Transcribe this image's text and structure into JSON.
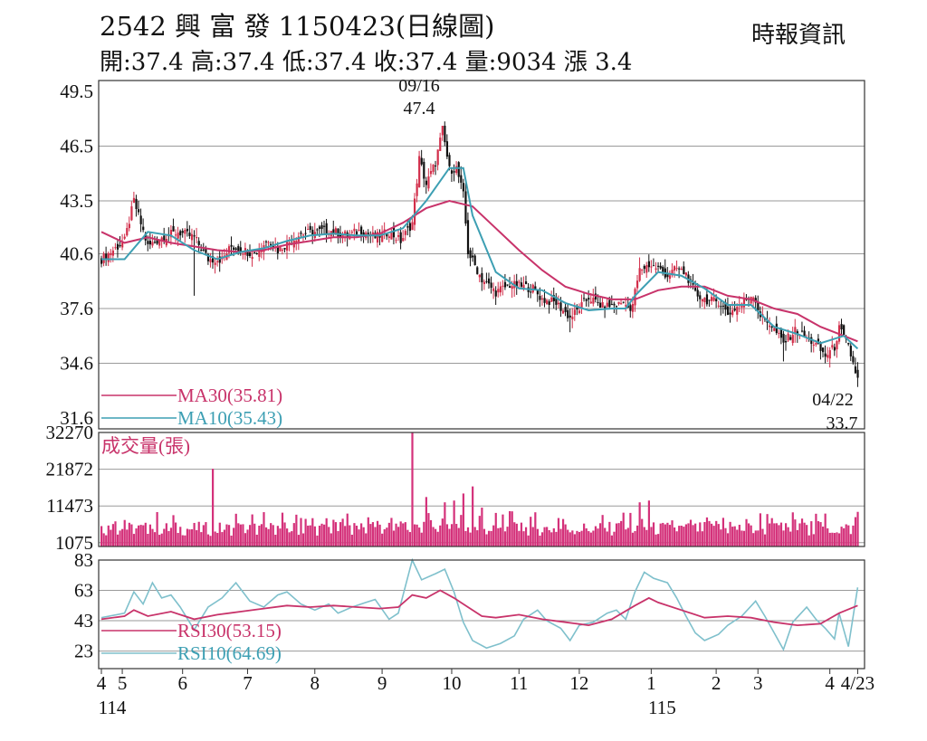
{
  "header": {
    "title": "2542 興 富 發 1150423(日線圖)",
    "source": "時報資訊",
    "quote": "開:37.4 高:37.4 低:37.4 收:37.4 量:9034 漲 3.4"
  },
  "colors": {
    "up": "#d22e4a",
    "down": "#111111",
    "ma30": "#c8336a",
    "ma10": "#3d9fb3",
    "volume": "#d4317a",
    "rsi30": "#c8336a",
    "rsi10": "#7fc0cc",
    "grid": "#9a9a9a"
  },
  "chart_data": [
    {
      "type": "candlestick",
      "title": "2542 興 富 發 1150423(日線圖)",
      "ylim": [
        31.6,
        49.5
      ],
      "yticks": [
        "49.5",
        "46.5",
        "43.5",
        "40.6",
        "37.6",
        "34.6",
        "31.6"
      ],
      "annotations": [
        {
          "date": "09/16",
          "value": "47.4"
        },
        {
          "date": "04/22",
          "value": "33.7"
        }
      ],
      "ma_legend": [
        {
          "name": "MA30",
          "label": "MA30(35.81)"
        },
        {
          "name": "MA10",
          "label": "MA10(35.43)"
        }
      ],
      "close_path": [
        [
          0,
          40.3
        ],
        [
          10,
          41.3
        ],
        [
          14,
          43.5
        ],
        [
          20,
          41.0
        ],
        [
          26,
          41.5
        ],
        [
          33,
          41.8
        ],
        [
          40,
          41.5
        ],
        [
          46,
          40.3
        ],
        [
          52,
          40.3
        ],
        [
          56,
          41.0
        ],
        [
          66,
          40.6
        ],
        [
          72,
          41.4
        ],
        [
          76,
          40.8
        ],
        [
          86,
          41.7
        ],
        [
          93,
          41.8
        ],
        [
          98,
          41.9
        ],
        [
          106,
          41.6
        ],
        [
          112,
          41.9
        ],
        [
          118,
          41.5
        ],
        [
          124,
          41.8
        ],
        [
          129,
          41.3
        ],
        [
          134,
          42.3
        ],
        [
          137,
          45.8
        ],
        [
          140,
          44.4
        ],
        [
          144,
          45.6
        ],
        [
          147,
          47.4
        ],
        [
          150,
          45.2
        ],
        [
          153,
          45.3
        ],
        [
          156,
          43.8
        ],
        [
          158,
          40.7
        ],
        [
          164,
          39.2
        ],
        [
          170,
          38.5
        ],
        [
          176,
          38.9
        ],
        [
          182,
          38.8
        ],
        [
          186,
          38.7
        ],
        [
          190,
          38.1
        ],
        [
          196,
          37.9
        ],
        [
          202,
          37.1
        ],
        [
          206,
          37.6
        ],
        [
          210,
          38.2
        ],
        [
          216,
          37.7
        ],
        [
          222,
          37.8
        ],
        [
          226,
          38.0
        ],
        [
          228,
          37.3
        ],
        [
          232,
          39.7
        ],
        [
          236,
          40.0
        ],
        [
          240,
          39.8
        ],
        [
          244,
          39.4
        ],
        [
          248,
          39.8
        ],
        [
          252,
          39.5
        ],
        [
          256,
          38.4
        ],
        [
          262,
          38.0
        ],
        [
          266,
          38.0
        ],
        [
          270,
          37.3
        ],
        [
          276,
          37.9
        ],
        [
          281,
          38.4
        ],
        [
          284,
          37.2
        ],
        [
          288,
          36.8
        ],
        [
          294,
          35.7
        ],
        [
          299,
          36.4
        ],
        [
          304,
          36.0
        ],
        [
          308,
          35.6
        ],
        [
          312,
          35.0
        ],
        [
          316,
          35.5
        ],
        [
          318,
          36.5
        ],
        [
          322,
          35.5
        ],
        [
          326,
          33.7
        ]
      ],
      "price_highs": [
        [
          14,
          44.0
        ],
        [
          147,
          47.4
        ],
        [
          232,
          40.4
        ],
        [
          318,
          36.9
        ]
      ],
      "price_lows": [
        [
          40,
          38.3
        ],
        [
          106,
          41.0
        ],
        [
          202,
          36.3
        ],
        [
          294,
          34.7
        ],
        [
          326,
          33.3
        ]
      ],
      "ma10": [
        [
          0,
          40.3
        ],
        [
          10,
          40.3
        ],
        [
          20,
          41.8
        ],
        [
          30,
          41.6
        ],
        [
          40,
          40.8
        ],
        [
          50,
          40.3
        ],
        [
          60,
          40.7
        ],
        [
          70,
          40.9
        ],
        [
          80,
          41.3
        ],
        [
          90,
          41.6
        ],
        [
          100,
          41.7
        ],
        [
          110,
          41.6
        ],
        [
          120,
          41.6
        ],
        [
          130,
          42.0
        ],
        [
          140,
          43.5
        ],
        [
          150,
          45.3
        ],
        [
          156,
          45.3
        ],
        [
          160,
          42.7
        ],
        [
          170,
          39.6
        ],
        [
          180,
          38.7
        ],
        [
          190,
          38.6
        ],
        [
          200,
          37.9
        ],
        [
          210,
          37.5
        ],
        [
          220,
          37.6
        ],
        [
          226,
          37.6
        ],
        [
          230,
          38.3
        ],
        [
          240,
          39.6
        ],
        [
          250,
          39.4
        ],
        [
          260,
          38.7
        ],
        [
          270,
          37.8
        ],
        [
          280,
          37.8
        ],
        [
          290,
          36.6
        ],
        [
          300,
          36.2
        ],
        [
          310,
          35.7
        ],
        [
          320,
          36.1
        ],
        [
          326,
          35.4
        ]
      ],
      "ma30": [
        [
          0,
          41.8
        ],
        [
          10,
          41.2
        ],
        [
          20,
          41.5
        ],
        [
          30,
          41.2
        ],
        [
          40,
          41.0
        ],
        [
          50,
          40.8
        ],
        [
          60,
          40.7
        ],
        [
          70,
          40.8
        ],
        [
          80,
          41.1
        ],
        [
          90,
          41.3
        ],
        [
          100,
          41.5
        ],
        [
          110,
          41.5
        ],
        [
          120,
          41.7
        ],
        [
          130,
          42.3
        ],
        [
          140,
          43.1
        ],
        [
          150,
          43.5
        ],
        [
          160,
          43.2
        ],
        [
          170,
          42.0
        ],
        [
          180,
          40.8
        ],
        [
          190,
          39.7
        ],
        [
          200,
          38.8
        ],
        [
          210,
          38.4
        ],
        [
          220,
          38.1
        ],
        [
          230,
          38.1
        ],
        [
          240,
          38.6
        ],
        [
          250,
          38.8
        ],
        [
          260,
          38.8
        ],
        [
          270,
          38.3
        ],
        [
          280,
          38.1
        ],
        [
          290,
          37.6
        ],
        [
          300,
          37.3
        ],
        [
          310,
          36.6
        ],
        [
          320,
          36.1
        ],
        [
          326,
          35.8
        ]
      ]
    },
    {
      "type": "bar",
      "title": "成交量(張)",
      "ylim": [
        0,
        32270
      ],
      "yticks": [
        "32270",
        "21872",
        "11473",
        "1075"
      ],
      "volumes": [
        [
          10,
          7500
        ],
        [
          48,
          22000
        ],
        [
          84,
          9000
        ],
        [
          134,
          32270
        ],
        [
          140,
          14000
        ],
        [
          148,
          12500
        ],
        [
          152,
          13000
        ],
        [
          156,
          15000
        ],
        [
          160,
          17000
        ],
        [
          164,
          11000
        ],
        [
          170,
          9500
        ],
        [
          176,
          10000
        ],
        [
          186,
          5500
        ],
        [
          228,
          9500
        ],
        [
          232,
          12500
        ],
        [
          236,
          13000
        ],
        [
          262,
          7200
        ],
        [
          326,
          9800
        ],
        [
          328,
          11500
        ]
      ],
      "volume_base": 3000
    },
    {
      "type": "line",
      "ylim": [
        15,
        83
      ],
      "yticks": [
        "83",
        "63",
        "43",
        "23"
      ],
      "legend": [
        {
          "name": "RSI30",
          "label": "RSI30(53.15)"
        },
        {
          "name": "RSI10",
          "label": "RSI10(64.69)"
        }
      ],
      "rsi30": [
        [
          0,
          44
        ],
        [
          10,
          46
        ],
        [
          14,
          50
        ],
        [
          20,
          46
        ],
        [
          30,
          49
        ],
        [
          40,
          44
        ],
        [
          50,
          47
        ],
        [
          60,
          49
        ],
        [
          70,
          51
        ],
        [
          80,
          53
        ],
        [
          90,
          52
        ],
        [
          100,
          53
        ],
        [
          110,
          52
        ],
        [
          120,
          51
        ],
        [
          128,
          52
        ],
        [
          134,
          60
        ],
        [
          140,
          58
        ],
        [
          146,
          63
        ],
        [
          152,
          58
        ],
        [
          158,
          52
        ],
        [
          164,
          46
        ],
        [
          170,
          45
        ],
        [
          180,
          47
        ],
        [
          190,
          44
        ],
        [
          200,
          42
        ],
        [
          210,
          40
        ],
        [
          220,
          44
        ],
        [
          230,
          53
        ],
        [
          236,
          58
        ],
        [
          240,
          55
        ],
        [
          250,
          50
        ],
        [
          260,
          45
        ],
        [
          270,
          46
        ],
        [
          280,
          45
        ],
        [
          290,
          42
        ],
        [
          300,
          40
        ],
        [
          310,
          41
        ],
        [
          318,
          48
        ],
        [
          326,
          53
        ]
      ],
      "rsi10": [
        [
          0,
          45
        ],
        [
          10,
          48
        ],
        [
          14,
          62
        ],
        [
          18,
          54
        ],
        [
          22,
          68
        ],
        [
          26,
          58
        ],
        [
          30,
          60
        ],
        [
          34,
          52
        ],
        [
          40,
          37
        ],
        [
          46,
          52
        ],
        [
          52,
          58
        ],
        [
          58,
          68
        ],
        [
          64,
          56
        ],
        [
          70,
          52
        ],
        [
          76,
          60
        ],
        [
          80,
          62
        ],
        [
          86,
          54
        ],
        [
          92,
          50
        ],
        [
          98,
          54
        ],
        [
          102,
          48
        ],
        [
          108,
          52
        ],
        [
          114,
          55
        ],
        [
          118,
          57
        ],
        [
          124,
          44
        ],
        [
          128,
          48
        ],
        [
          134,
          83
        ],
        [
          138,
          70
        ],
        [
          144,
          74
        ],
        [
          148,
          77
        ],
        [
          152,
          62
        ],
        [
          156,
          42
        ],
        [
          160,
          30
        ],
        [
          166,
          25
        ],
        [
          172,
          28
        ],
        [
          178,
          33
        ],
        [
          182,
          44
        ],
        [
          188,
          50
        ],
        [
          192,
          43
        ],
        [
          198,
          38
        ],
        [
          202,
          30
        ],
        [
          206,
          40
        ],
        [
          212,
          42
        ],
        [
          218,
          48
        ],
        [
          222,
          50
        ],
        [
          226,
          44
        ],
        [
          230,
          62
        ],
        [
          234,
          75
        ],
        [
          238,
          71
        ],
        [
          244,
          68
        ],
        [
          248,
          58
        ],
        [
          252,
          46
        ],
        [
          256,
          35
        ],
        [
          260,
          30
        ],
        [
          266,
          34
        ],
        [
          270,
          40
        ],
        [
          276,
          46
        ],
        [
          282,
          56
        ],
        [
          286,
          46
        ],
        [
          290,
          35
        ],
        [
          294,
          24
        ],
        [
          298,
          42
        ],
        [
          304,
          52
        ],
        [
          308,
          44
        ],
        [
          312,
          38
        ],
        [
          316,
          31
        ],
        [
          318,
          48
        ],
        [
          322,
          26
        ],
        [
          326,
          65
        ]
      ]
    }
  ],
  "x_axis": {
    "ticks": [
      {
        "label": "4",
        "x": 0
      },
      {
        "label": "5",
        "x": 9
      },
      {
        "label": "6",
        "x": 35
      },
      {
        "label": "7",
        "x": 63
      },
      {
        "label": "8",
        "x": 92
      },
      {
        "label": "9",
        "x": 121
      },
      {
        "label": "10",
        "x": 151
      },
      {
        "label": "11",
        "x": 180
      },
      {
        "label": "12",
        "x": 206
      },
      {
        "label": "1",
        "x": 237
      },
      {
        "label": "2",
        "x": 265
      },
      {
        "label": "3",
        "x": 283
      },
      {
        "label": "4",
        "x": 314
      },
      {
        "label": "4/23",
        "x": 326
      }
    ],
    "years": [
      {
        "label": "114",
        "x": 0
      },
      {
        "label": "115",
        "x": 237
      }
    ]
  }
}
